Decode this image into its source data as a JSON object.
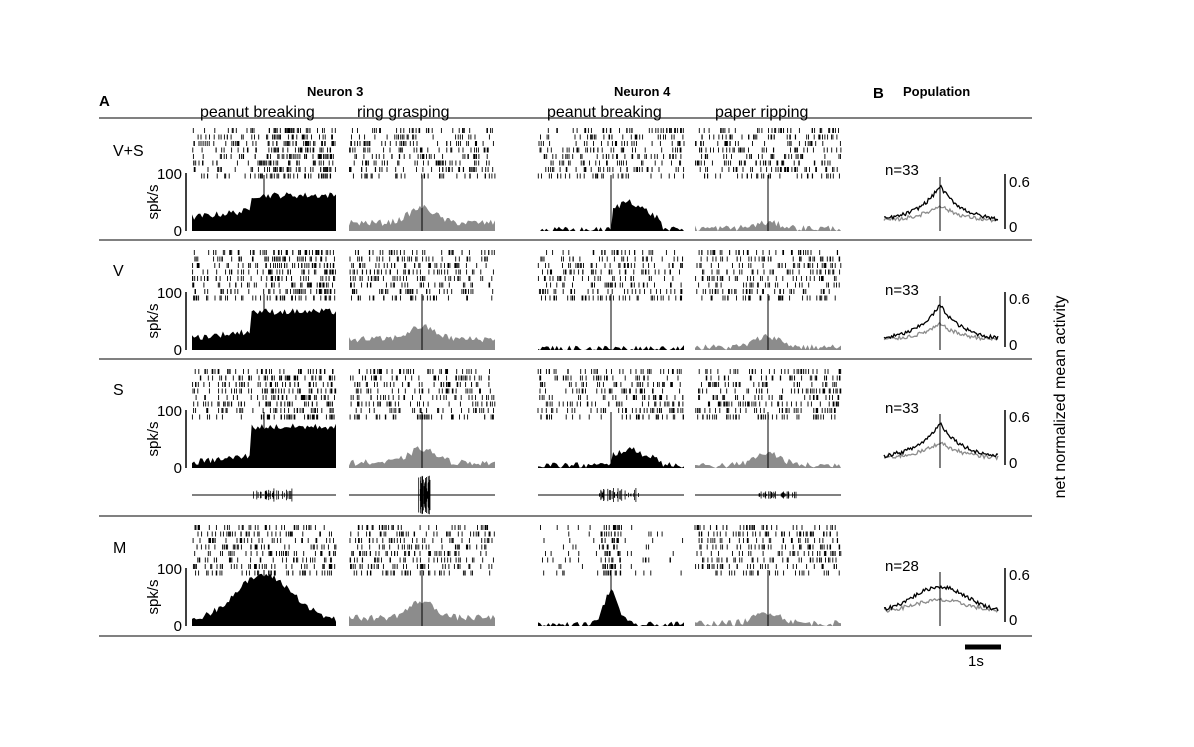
{
  "panel_a_label": "A",
  "panel_b_label": "B",
  "neurons": [
    {
      "title": "Neuron 3",
      "conditions": [
        "peanut breaking",
        "ring grasping"
      ]
    },
    {
      "title": "Neuron 4",
      "conditions": [
        "peanut breaking",
        "paper ripping"
      ]
    }
  ],
  "population_title": "Population",
  "rows": [
    {
      "label": "V+S",
      "n": "n=33",
      "has_sound": false
    },
    {
      "label": "V",
      "n": "n=33",
      "has_sound": false
    },
    {
      "label": "S",
      "n": "n=33",
      "has_sound": true
    },
    {
      "label": "M",
      "n": "n=28",
      "has_sound": false
    }
  ],
  "psth_y_axis": {
    "label": "spk/s",
    "ticks": [
      "100",
      "0"
    ],
    "range": [
      0,
      100
    ]
  },
  "population_y_axis": {
    "label": "net normalized mean activity",
    "ticks": [
      "0.6",
      "0"
    ],
    "range": [
      0,
      0.6
    ]
  },
  "scale_bar_label": "1s",
  "colors": {
    "preferred": "#000000",
    "non_preferred": "#8c8c8c",
    "rule": "#000000"
  }
}
